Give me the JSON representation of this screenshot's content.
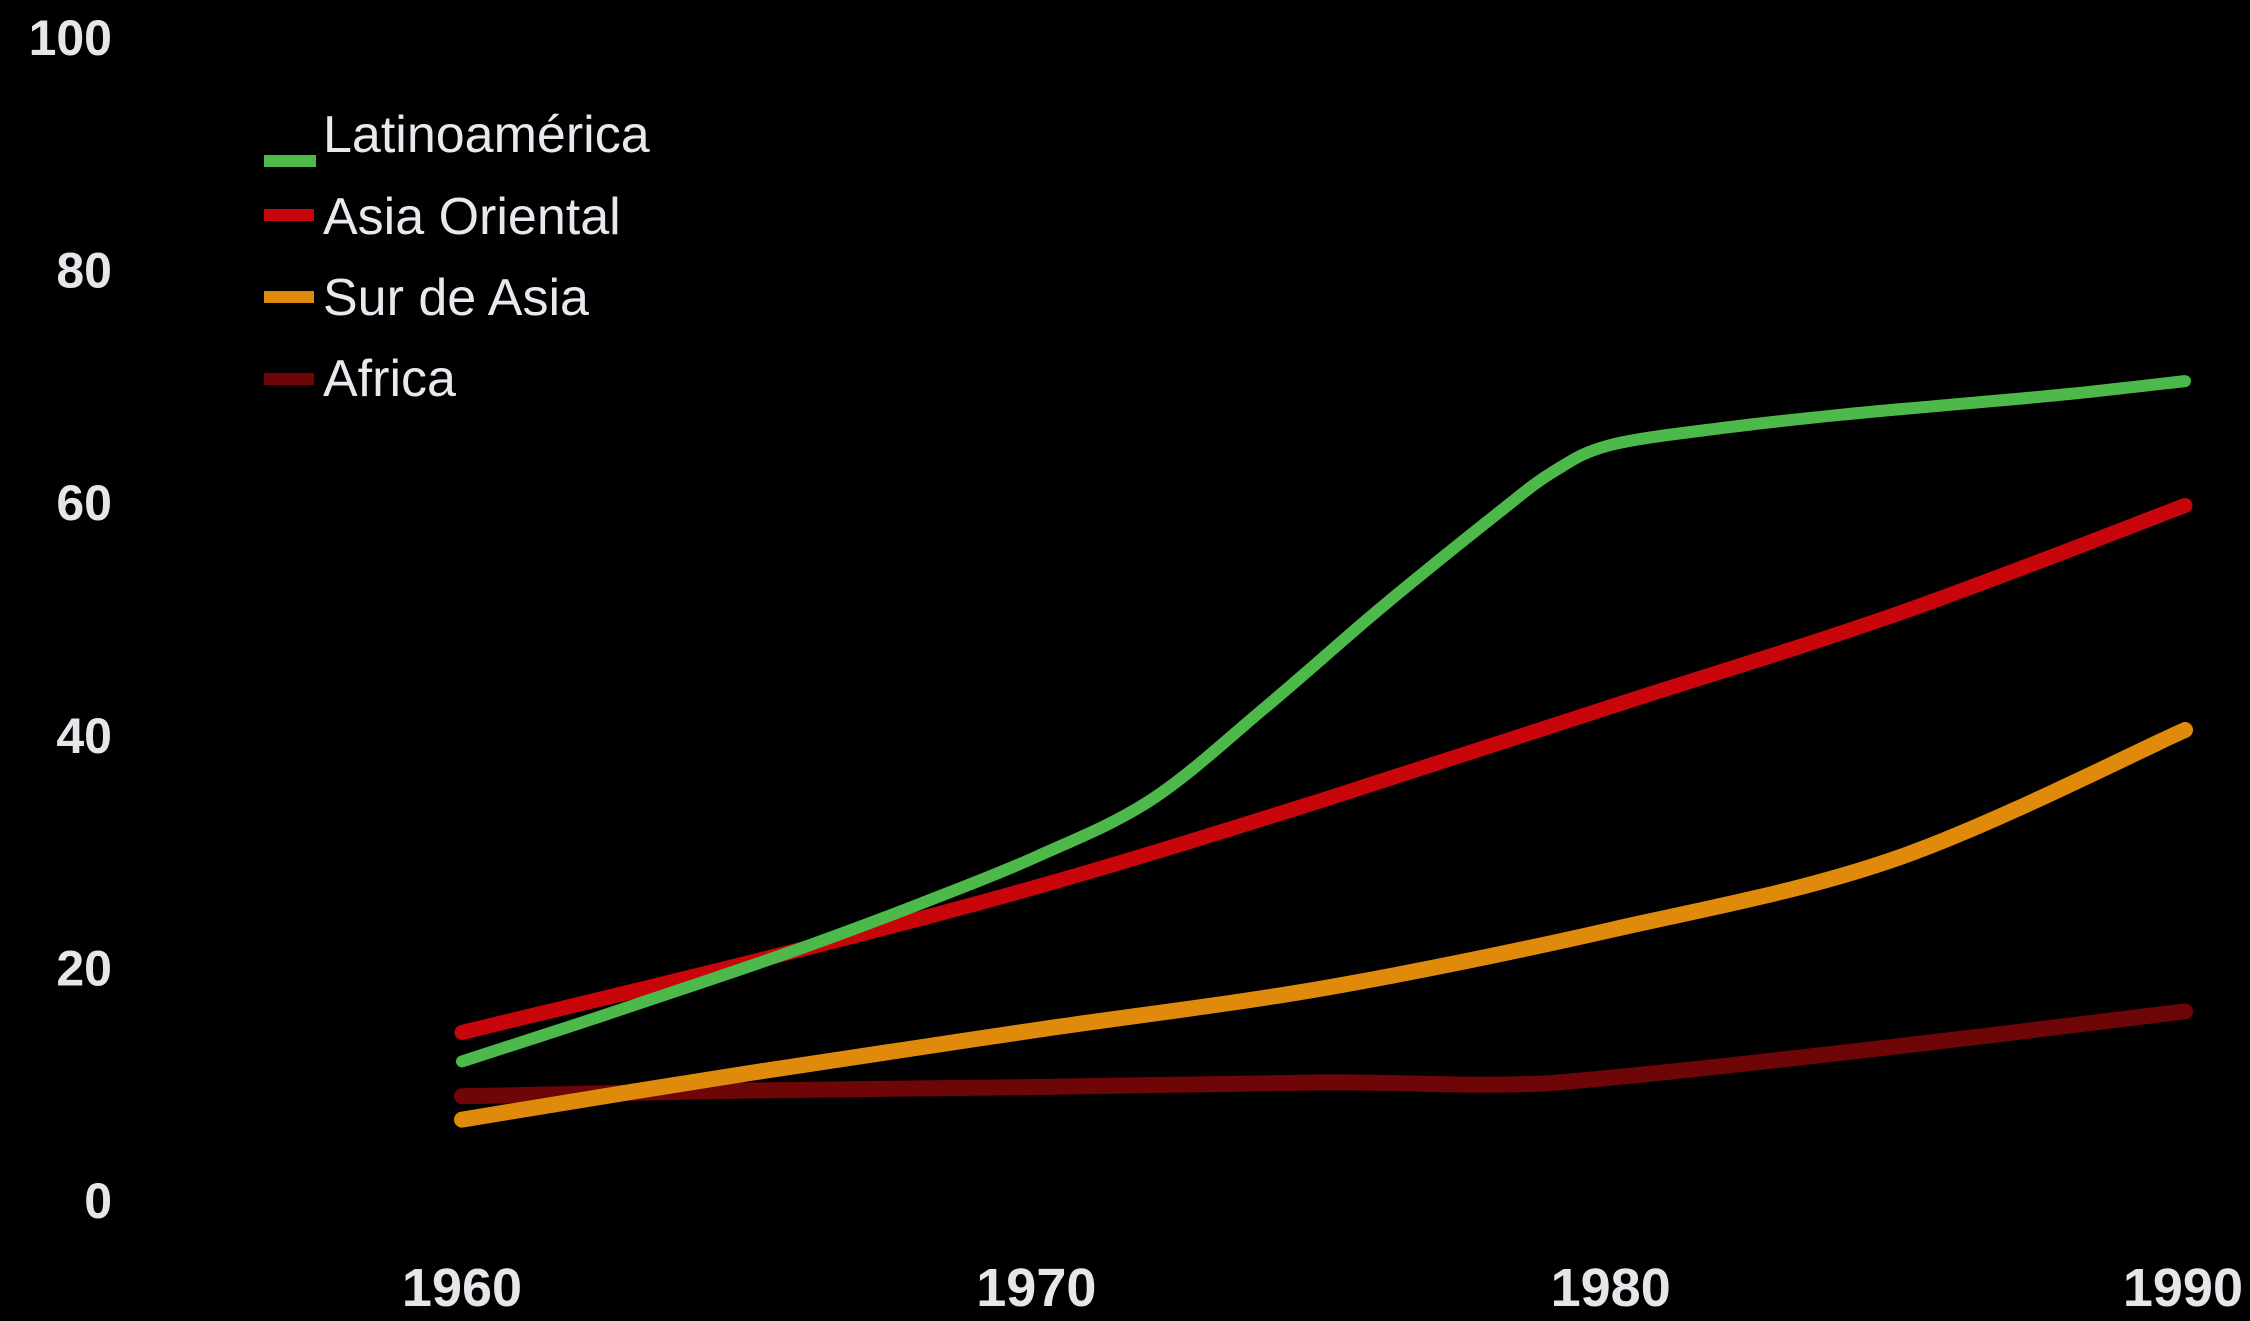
{
  "chart_data": {
    "type": "line",
    "title": "",
    "xlabel": "",
    "ylabel": "",
    "x_ticks": [
      "1960",
      "1970",
      "1980",
      "1990"
    ],
    "y_ticks": [
      "0",
      "20",
      "40",
      "60",
      "80",
      "100"
    ],
    "xlim": [
      1960,
      1990
    ],
    "ylim": [
      0,
      100
    ],
    "grid": false,
    "legend_position": "top-left",
    "background_color": "#000000",
    "series": [
      {
        "name": "Latinoamérica",
        "color": "#4cb94a",
        "x": [
          1960,
          1962,
          1964,
          1966,
          1968,
          1970,
          1972,
          1974,
          1976,
          1978,
          1979,
          1980,
          1982,
          1984,
          1986,
          1988,
          1990
        ],
        "y": [
          12,
          15.2,
          18.5,
          21.9,
          25.6,
          29.6,
          34.5,
          42.5,
          51,
          59,
          62.7,
          65,
          66.5,
          67.6,
          68.5,
          69.4,
          70.5
        ]
      },
      {
        "name": "Asia Oriental",
        "color": "#c8050a",
        "x": [
          1960,
          1965,
          1970,
          1975,
          1980,
          1985,
          1990
        ],
        "y": [
          14.5,
          20.5,
          27,
          34.5,
          42.5,
          50.5,
          59.8
        ]
      },
      {
        "name": "Sur de Asia",
        "color": "#e08a0c",
        "x": [
          1960,
          1965,
          1970,
          1975,
          1980,
          1985,
          1990
        ],
        "y": [
          7,
          11,
          14.7,
          18.3,
          23.3,
          29.5,
          40.5
        ]
      },
      {
        "name": "Africa",
        "color": "#6e0607",
        "x": [
          1960,
          1965,
          1970,
          1975,
          1978,
          1980,
          1985,
          1990
        ],
        "y": [
          9,
          9.5,
          9.8,
          10.2,
          10,
          10.6,
          13.3,
          16.3
        ]
      }
    ]
  }
}
